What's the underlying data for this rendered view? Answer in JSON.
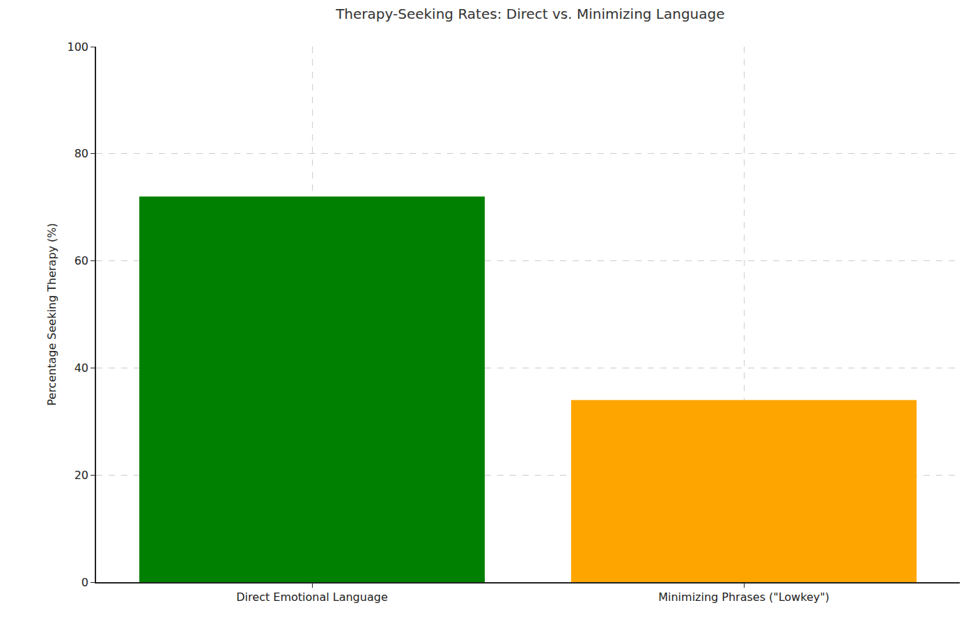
{
  "chart_data": {
    "type": "bar",
    "title": "Therapy-Seeking Rates: Direct vs. Minimizing Language",
    "y_label": "Percentage Seeking Therapy (%)",
    "categories": [
      "Direct Emotional Language",
      "Minimizing Phrases (\"Lowkey\")"
    ],
    "values": [
      72,
      34
    ],
    "colors": [
      "#008000",
      "#ffa500"
    ],
    "ylim": [
      0,
      100
    ],
    "yticks": [
      0,
      20,
      40,
      60,
      80,
      100
    ],
    "grid": true
  }
}
